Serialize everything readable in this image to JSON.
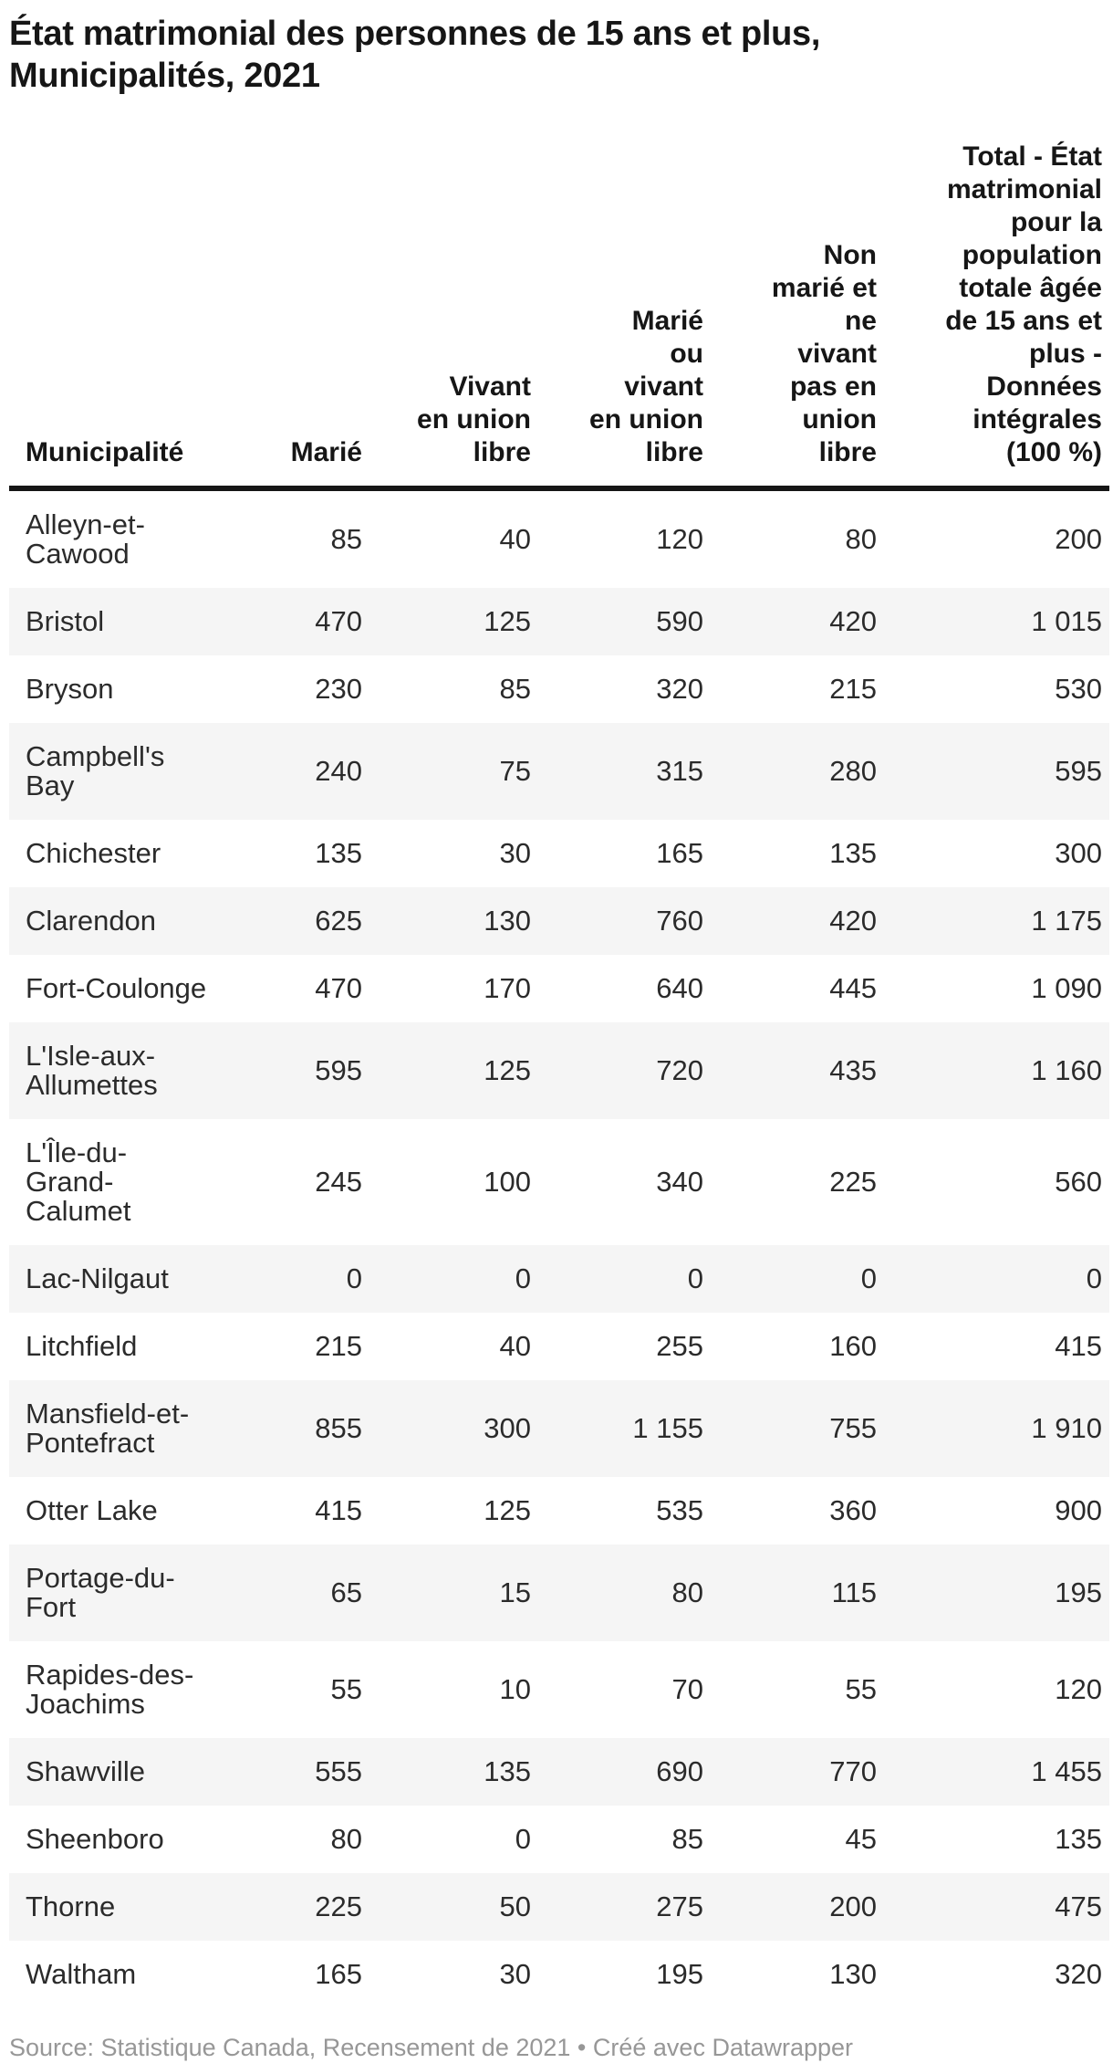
{
  "title_display": "État matrimonial des personnes de 15 ans et plus,\nMunicipalités, 2021",
  "table": {
    "columns": [
      {
        "label": "Municipalité"
      },
      {
        "label": "Marié"
      },
      {
        "label": "Vivant\nen union\nlibre"
      },
      {
        "label": "Marié\nou\nvivant\nen union\nlibre"
      },
      {
        "label": "Non\nmarié et\nne\nvivant\npas en\nunion\nlibre"
      },
      {
        "label": "Total - État\nmatrimonial\npour la\npopulation\ntotale âgée\nde 15 ans et\nplus -\nDonnées\nintégrales\n(100 %)"
      }
    ],
    "rows": [
      {
        "name": "Alleyn-et-\nCawood",
        "values": [
          "85",
          "40",
          "120",
          "80",
          "200"
        ]
      },
      {
        "name": "Bristol",
        "values": [
          "470",
          "125",
          "590",
          "420",
          "1 015"
        ]
      },
      {
        "name": "Bryson",
        "values": [
          "230",
          "85",
          "320",
          "215",
          "530"
        ]
      },
      {
        "name": "Campbell's\nBay",
        "values": [
          "240",
          "75",
          "315",
          "280",
          "595"
        ]
      },
      {
        "name": "Chichester",
        "values": [
          "135",
          "30",
          "165",
          "135",
          "300"
        ]
      },
      {
        "name": "Clarendon",
        "values": [
          "625",
          "130",
          "760",
          "420",
          "1 175"
        ]
      },
      {
        "name": "Fort-Coulonge",
        "values": [
          "470",
          "170",
          "640",
          "445",
          "1 090"
        ]
      },
      {
        "name": "L'Isle-aux-\nAllumettes",
        "values": [
          "595",
          "125",
          "720",
          "435",
          "1 160"
        ]
      },
      {
        "name": "L'Île-du-Grand-\nCalumet",
        "values": [
          "245",
          "100",
          "340",
          "225",
          "560"
        ]
      },
      {
        "name": "Lac-Nilgaut",
        "values": [
          "0",
          "0",
          "0",
          "0",
          "0"
        ]
      },
      {
        "name": "Litchfield",
        "values": [
          "215",
          "40",
          "255",
          "160",
          "415"
        ]
      },
      {
        "name": "Mansfield-et-\nPontefract",
        "values": [
          "855",
          "300",
          "1 155",
          "755",
          "1 910"
        ]
      },
      {
        "name": "Otter Lake",
        "values": [
          "415",
          "125",
          "535",
          "360",
          "900"
        ]
      },
      {
        "name": "Portage-du-\nFort",
        "values": [
          "65",
          "15",
          "80",
          "115",
          "195"
        ]
      },
      {
        "name": "Rapides-des-\nJoachims",
        "values": [
          "55",
          "10",
          "70",
          "55",
          "120"
        ]
      },
      {
        "name": "Shawville",
        "values": [
          "555",
          "135",
          "690",
          "770",
          "1 455"
        ]
      },
      {
        "name": "Sheenboro",
        "values": [
          "80",
          "0",
          "85",
          "45",
          "135"
        ]
      },
      {
        "name": "Thorne",
        "values": [
          "225",
          "50",
          "275",
          "200",
          "475"
        ]
      },
      {
        "name": "Waltham",
        "values": [
          "165",
          "30",
          "195",
          "130",
          "320"
        ]
      }
    ]
  },
  "footer": {
    "source": "Source: Statistique Canada, Recensement de 2021",
    "bullet": "•",
    "credit": "Créé avec Datawrapper"
  },
  "colors": {
    "title_text": "#161616",
    "header_text": "#161616",
    "header_rule": "#161616",
    "body_text": "#2b2b2b",
    "stripe": "#f5f5f5",
    "footer_text": "#979797",
    "background": "#ffffff"
  },
  "chart_data": {
    "type": "table",
    "title": "État matrimonial des personnes de 15 ans et plus, Municipalités, 2021",
    "source": "Statistique Canada, Recensement de 2021",
    "credit": "Créé avec Datawrapper",
    "headers": [
      "Municipalité",
      "Marié",
      "Vivant en union libre",
      "Marié ou vivant en union libre",
      "Non marié et ne vivant pas en union libre",
      "Total - État matrimonial pour la population totale âgée de 15 ans et plus - Données intégrales (100 %)"
    ],
    "rows": [
      [
        "Alleyn-et-Cawood",
        85,
        40,
        120,
        80,
        200
      ],
      [
        "Bristol",
        470,
        125,
        590,
        420,
        1015
      ],
      [
        "Bryson",
        230,
        85,
        320,
        215,
        530
      ],
      [
        "Campbell's Bay",
        240,
        75,
        315,
        280,
        595
      ],
      [
        "Chichester",
        135,
        30,
        165,
        135,
        300
      ],
      [
        "Clarendon",
        625,
        130,
        760,
        420,
        1175
      ],
      [
        "Fort-Coulonge",
        470,
        170,
        640,
        445,
        1090
      ],
      [
        "L'Isle-aux-Allumettes",
        595,
        125,
        720,
        435,
        1160
      ],
      [
        "L'Île-du-Grand-Calumet",
        245,
        100,
        340,
        225,
        560
      ],
      [
        "Lac-Nilgaut",
        0,
        0,
        0,
        0,
        0
      ],
      [
        "Litchfield",
        215,
        40,
        255,
        160,
        415
      ],
      [
        "Mansfield-et-Pontefract",
        855,
        300,
        1155,
        755,
        1910
      ],
      [
        "Otter Lake",
        415,
        125,
        535,
        360,
        900
      ],
      [
        "Portage-du-Fort",
        65,
        15,
        80,
        115,
        195
      ],
      [
        "Rapides-des-Joachims",
        55,
        10,
        70,
        55,
        120
      ],
      [
        "Shawville",
        555,
        135,
        690,
        770,
        1455
      ],
      [
        "Sheenboro",
        80,
        0,
        85,
        45,
        135
      ],
      [
        "Thorne",
        225,
        50,
        275,
        200,
        475
      ],
      [
        "Waltham",
        165,
        30,
        195,
        130,
        320
      ]
    ],
    "layout": {
      "zebra_striping": true,
      "numeric_alignment": "right",
      "header_alignment": "bottom",
      "thousands_separator": "space"
    }
  }
}
